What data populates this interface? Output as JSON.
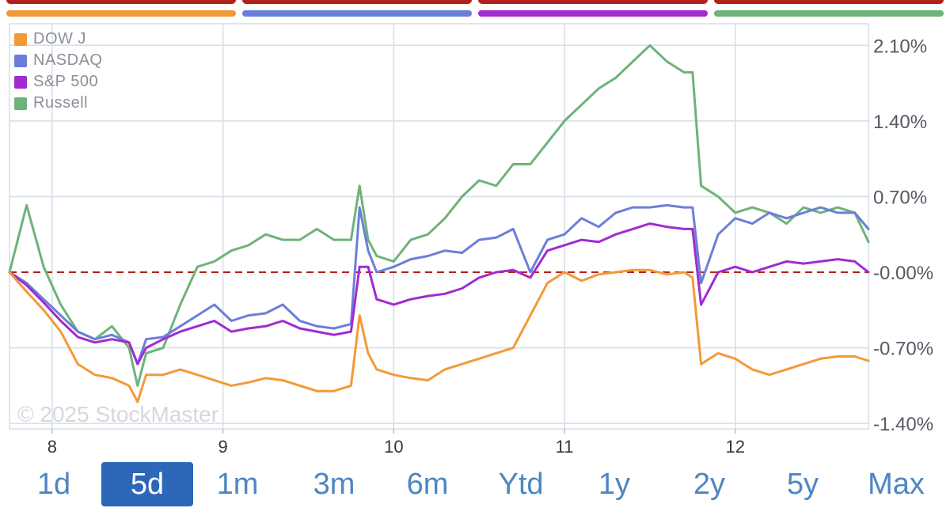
{
  "index_tabs": [
    {
      "name": "DOW J",
      "color": "#f29a38"
    },
    {
      "name": "NASDAQ",
      "color": "#6b7fd8"
    },
    {
      "name": "S&P 500",
      "color": "#a12bd0"
    },
    {
      "name": "Russell",
      "color": "#6db37a"
    }
  ],
  "watermark": "© 2025 StockMaster",
  "time_ranges": [
    "1d",
    "5d",
    "1m",
    "3m",
    "6m",
    "Ytd",
    "1y",
    "2y",
    "5y",
    "Max"
  ],
  "active_range": "5d",
  "chart_data": {
    "type": "line",
    "x_tick_labels": [
      "8",
      "9",
      "10",
      "11",
      "12"
    ],
    "x_range": [
      7.75,
      12.78
    ],
    "y_tick_labels": [
      "2.10%",
      "1.40%",
      "0.70%",
      "-0.00%",
      "-0.70%",
      "-1.40%"
    ],
    "y_ticks": [
      2.1,
      1.4,
      0.7,
      0.0,
      -0.7,
      -1.4
    ],
    "ylim": [
      -1.45,
      2.3
    ],
    "baseline": 0.0,
    "legend_position": "top-left",
    "grid": true,
    "series": [
      {
        "name": "DOW J",
        "color": "#f29a38",
        "x": [
          7.75,
          7.85,
          7.95,
          8.05,
          8.15,
          8.25,
          8.35,
          8.45,
          8.5,
          8.55,
          8.65,
          8.75,
          8.85,
          8.95,
          9.05,
          9.15,
          9.25,
          9.35,
          9.45,
          9.55,
          9.65,
          9.75,
          9.8,
          9.85,
          9.9,
          10.0,
          10.1,
          10.2,
          10.3,
          10.4,
          10.5,
          10.6,
          10.7,
          10.8,
          10.9,
          11.0,
          11.1,
          11.2,
          11.3,
          11.4,
          11.5,
          11.6,
          11.7,
          11.75,
          11.8,
          11.9,
          12.0,
          12.1,
          12.2,
          12.3,
          12.4,
          12.5,
          12.6,
          12.7,
          12.78
        ],
        "y": [
          0.0,
          -0.18,
          -0.35,
          -0.55,
          -0.85,
          -0.95,
          -0.98,
          -1.05,
          -1.2,
          -0.95,
          -0.95,
          -0.9,
          -0.95,
          -1.0,
          -1.05,
          -1.02,
          -0.98,
          -1.0,
          -1.05,
          -1.1,
          -1.1,
          -1.05,
          -0.4,
          -0.75,
          -0.9,
          -0.95,
          -0.98,
          -1.0,
          -0.9,
          -0.85,
          -0.8,
          -0.75,
          -0.7,
          -0.4,
          -0.1,
          0.0,
          -0.08,
          -0.02,
          0.0,
          0.02,
          0.02,
          -0.02,
          0.0,
          -0.05,
          -0.85,
          -0.75,
          -0.8,
          -0.9,
          -0.95,
          -0.9,
          -0.85,
          -0.8,
          -0.78,
          -0.78,
          -0.82
        ]
      },
      {
        "name": "NASDAQ",
        "color": "#6b7fd8",
        "x": [
          7.75,
          7.85,
          7.95,
          8.05,
          8.15,
          8.25,
          8.35,
          8.45,
          8.5,
          8.55,
          8.65,
          8.75,
          8.85,
          8.95,
          9.05,
          9.15,
          9.25,
          9.35,
          9.45,
          9.55,
          9.65,
          9.75,
          9.8,
          9.85,
          9.9,
          10.0,
          10.1,
          10.2,
          10.3,
          10.4,
          10.5,
          10.6,
          10.7,
          10.8,
          10.9,
          11.0,
          11.1,
          11.2,
          11.3,
          11.4,
          11.5,
          11.6,
          11.7,
          11.75,
          11.8,
          11.9,
          12.0,
          12.1,
          12.2,
          12.3,
          12.4,
          12.5,
          12.6,
          12.7,
          12.78
        ],
        "y": [
          0.0,
          -0.1,
          -0.25,
          -0.4,
          -0.55,
          -0.62,
          -0.58,
          -0.65,
          -0.85,
          -0.62,
          -0.6,
          -0.5,
          -0.4,
          -0.3,
          -0.45,
          -0.4,
          -0.38,
          -0.3,
          -0.45,
          -0.5,
          -0.52,
          -0.48,
          0.6,
          0.2,
          0.0,
          0.05,
          0.12,
          0.15,
          0.2,
          0.18,
          0.3,
          0.32,
          0.4,
          0.0,
          0.3,
          0.35,
          0.5,
          0.42,
          0.55,
          0.6,
          0.6,
          0.62,
          0.6,
          0.6,
          -0.1,
          0.35,
          0.5,
          0.45,
          0.55,
          0.5,
          0.55,
          0.6,
          0.55,
          0.55,
          0.4
        ]
      },
      {
        "name": "S&P 500",
        "color": "#a12bd0",
        "x": [
          7.75,
          7.85,
          7.95,
          8.05,
          8.15,
          8.25,
          8.35,
          8.45,
          8.5,
          8.55,
          8.65,
          8.75,
          8.85,
          8.95,
          9.05,
          9.15,
          9.25,
          9.35,
          9.45,
          9.55,
          9.65,
          9.75,
          9.8,
          9.85,
          9.9,
          10.0,
          10.1,
          10.2,
          10.3,
          10.4,
          10.5,
          10.6,
          10.7,
          10.8,
          10.9,
          11.0,
          11.1,
          11.2,
          11.3,
          11.4,
          11.5,
          11.6,
          11.7,
          11.75,
          11.8,
          11.9,
          12.0,
          12.1,
          12.2,
          12.3,
          12.4,
          12.5,
          12.6,
          12.7,
          12.78
        ],
        "y": [
          0.0,
          -0.12,
          -0.28,
          -0.45,
          -0.6,
          -0.65,
          -0.62,
          -0.65,
          -0.85,
          -0.7,
          -0.62,
          -0.55,
          -0.5,
          -0.45,
          -0.55,
          -0.52,
          -0.5,
          -0.45,
          -0.52,
          -0.55,
          -0.58,
          -0.55,
          0.05,
          0.05,
          -0.25,
          -0.3,
          -0.25,
          -0.22,
          -0.2,
          -0.15,
          -0.05,
          0.0,
          0.02,
          -0.05,
          0.2,
          0.25,
          0.3,
          0.28,
          0.35,
          0.4,
          0.45,
          0.42,
          0.4,
          0.4,
          -0.3,
          0.0,
          0.05,
          0.0,
          0.05,
          0.1,
          0.08,
          0.1,
          0.12,
          0.1,
          0.0
        ]
      },
      {
        "name": "Russell",
        "color": "#6db37a",
        "x": [
          7.75,
          7.85,
          7.95,
          8.05,
          8.15,
          8.25,
          8.35,
          8.45,
          8.5,
          8.55,
          8.65,
          8.75,
          8.85,
          8.95,
          9.05,
          9.15,
          9.25,
          9.35,
          9.45,
          9.55,
          9.65,
          9.75,
          9.8,
          9.85,
          9.9,
          10.0,
          10.1,
          10.2,
          10.3,
          10.4,
          10.5,
          10.6,
          10.7,
          10.8,
          10.9,
          11.0,
          11.1,
          11.2,
          11.3,
          11.4,
          11.5,
          11.6,
          11.7,
          11.75,
          11.8,
          11.9,
          12.0,
          12.1,
          12.2,
          12.3,
          12.4,
          12.5,
          12.6,
          12.7,
          12.78
        ],
        "y": [
          0.0,
          0.62,
          0.05,
          -0.3,
          -0.55,
          -0.62,
          -0.5,
          -0.7,
          -1.05,
          -0.75,
          -0.7,
          -0.3,
          0.05,
          0.1,
          0.2,
          0.25,
          0.35,
          0.3,
          0.3,
          0.4,
          0.3,
          0.3,
          0.8,
          0.3,
          0.15,
          0.1,
          0.3,
          0.35,
          0.5,
          0.7,
          0.85,
          0.8,
          1.0,
          1.0,
          1.2,
          1.4,
          1.55,
          1.7,
          1.8,
          1.95,
          2.1,
          1.95,
          1.85,
          1.85,
          0.8,
          0.7,
          0.55,
          0.6,
          0.55,
          0.45,
          0.6,
          0.55,
          0.6,
          0.55,
          0.28
        ]
      }
    ]
  }
}
